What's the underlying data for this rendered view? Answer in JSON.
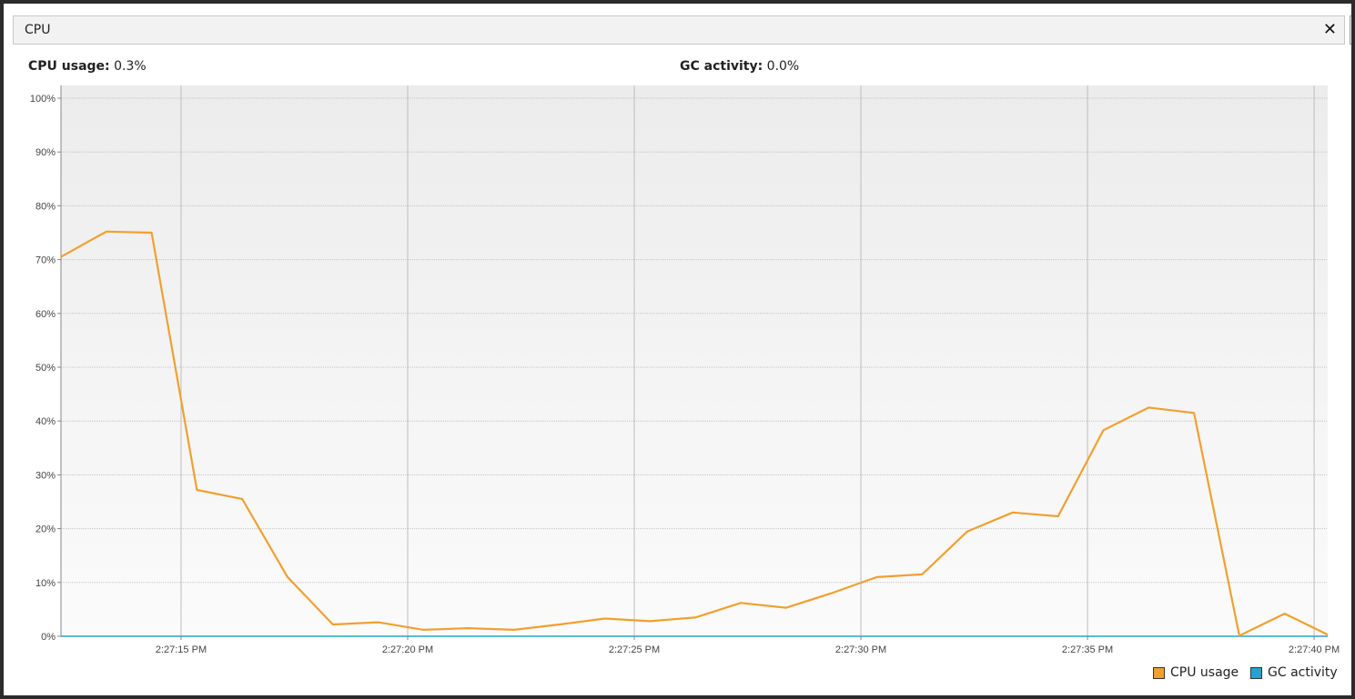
{
  "window": {
    "title": "CPU",
    "close_glyph": "✕"
  },
  "stats": {
    "cpu_label": "CPU usage:",
    "cpu_value": "0.3%",
    "gc_label": "GC activity:",
    "gc_value": "0.0%"
  },
  "colors": {
    "cpu": "#f0a030",
    "gc": "#2a9fd0"
  },
  "chart_data": {
    "type": "line",
    "ylim": [
      0,
      100
    ],
    "y_ticks": [
      "0%",
      "10%",
      "20%",
      "30%",
      "40%",
      "50%",
      "60%",
      "70%",
      "80%",
      "90%",
      "100%"
    ],
    "x_ticks": [
      "2:27:15 PM",
      "2:27:20 PM",
      "2:27:25 PM",
      "2:27:30 PM",
      "2:27:35 PM",
      "2:27:40 PM"
    ],
    "x_tick_seconds": [
      15,
      20,
      25,
      30,
      35,
      40
    ],
    "xlim_seconds": [
      12.35,
      40.3
    ],
    "grid": true,
    "legend_position": "bottom-right",
    "series": [
      {
        "name": "CPU usage",
        "color": "#f0a030",
        "x_seconds": [
          12.35,
          13.35,
          14.35,
          15.35,
          16.35,
          17.35,
          18.35,
          19.35,
          20.35,
          21.35,
          22.35,
          23.35,
          24.35,
          25.35,
          26.35,
          27.35,
          28.35,
          29.35,
          30.35,
          31.35,
          32.35,
          33.35,
          34.35,
          35.35,
          36.35,
          37.35,
          38.35,
          39.35,
          40.3
        ],
        "values": [
          70.5,
          75.2,
          75.0,
          27.2,
          25.5,
          11.0,
          2.2,
          2.6,
          1.2,
          1.5,
          1.2,
          2.2,
          3.3,
          2.8,
          3.5,
          6.2,
          5.3,
          8.0,
          11.0,
          11.5,
          19.5,
          23.0,
          22.3,
          38.3,
          42.5,
          41.5,
          0.1,
          4.2,
          0.3
        ]
      },
      {
        "name": "GC activity",
        "color": "#2a9fd0",
        "x_seconds": [
          12.35,
          40.3
        ],
        "values": [
          0,
          0
        ]
      }
    ]
  }
}
